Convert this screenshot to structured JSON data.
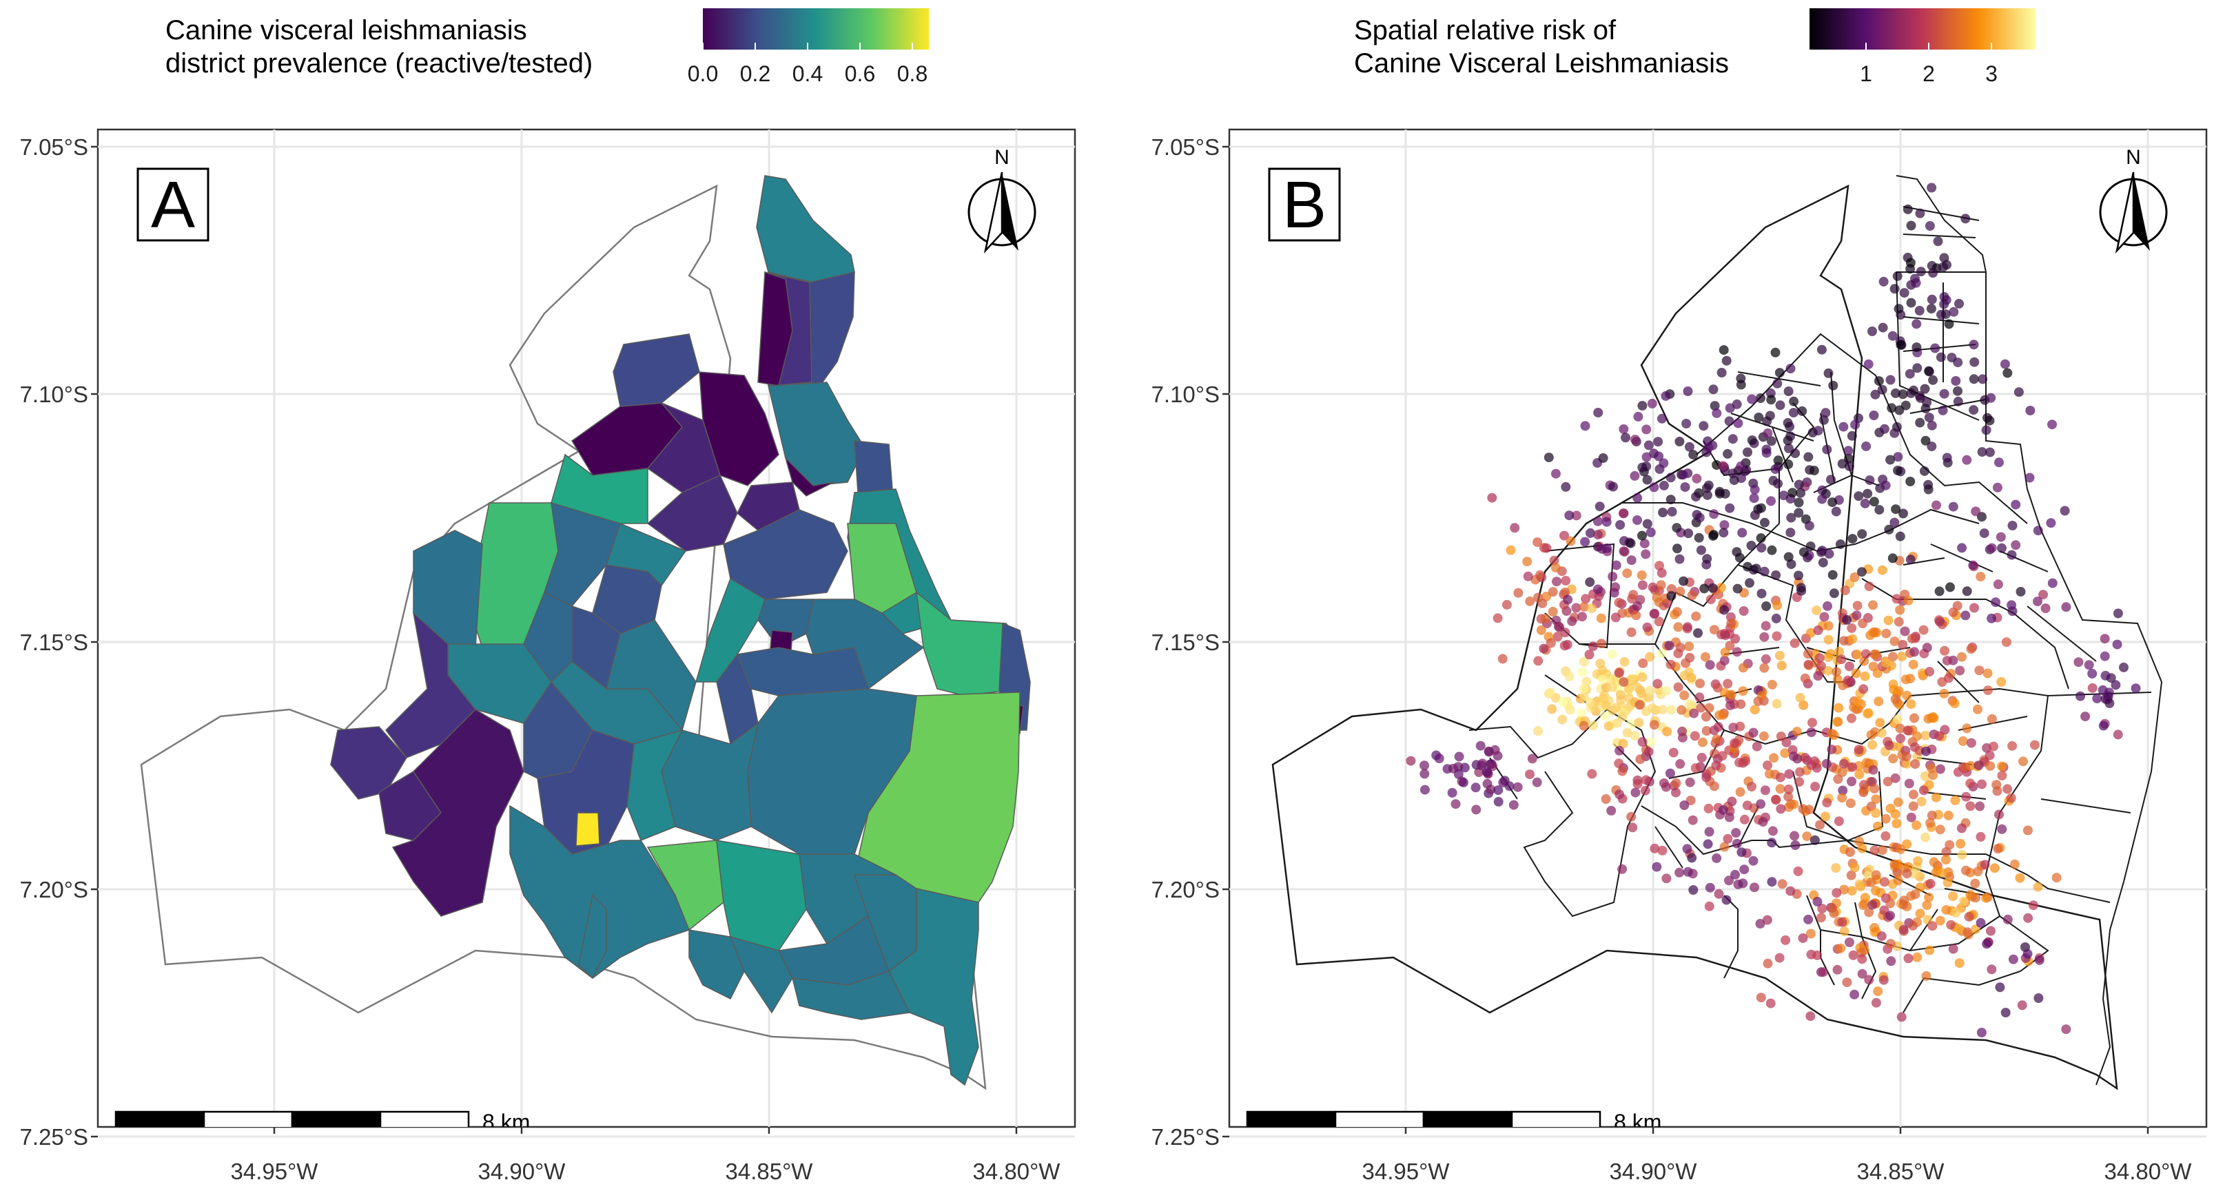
{
  "figure": {
    "panels": [
      {
        "panel_label": "A",
        "legend_title_line1": "Canine visceral leishmaniasis",
        "legend_title_line2": "district prevalence (reactive/tested)",
        "legend_ticks": [
          "0.0",
          "0.2",
          "0.4",
          "0.6",
          "0.8"
        ],
        "colormap": "viridis",
        "scale_label": "8 km",
        "north_label": "N"
      },
      {
        "panel_label": "B",
        "legend_title_line1": "Spatial relative risk of",
        "legend_title_line2": "Canine Visceral Leishmaniasis",
        "legend_ticks": [
          "1",
          "2",
          "3"
        ],
        "colormap": "inferno",
        "scale_label": "8 km",
        "north_label": "N"
      }
    ],
    "y_ticks": [
      "7.05°S",
      "7.10°S",
      "7.15°S",
      "7.20°S",
      "7.25°S"
    ],
    "x_ticks": [
      "34.95°W",
      "34.90°W",
      "34.85°W",
      "34.80°W"
    ]
  },
  "chart_data": {
    "type": "map",
    "panels": [
      {
        "id": "A",
        "kind": "choropleth",
        "variable": "district prevalence (reactive/tested)",
        "value_range": [
          0.0,
          0.85
        ],
        "x_axis": {
          "labels": [
            "34.95°W",
            "34.90°W",
            "34.85°W",
            "34.80°W"
          ],
          "values": [
            -34.95,
            -34.9,
            -34.85,
            -34.8
          ]
        },
        "y_axis": {
          "labels": [
            "7.05°S",
            "7.10°S",
            "7.15°S",
            "7.20°S",
            "7.25°S"
          ],
          "values": [
            -7.05,
            -7.1,
            -7.15,
            -7.2,
            -7.25
          ]
        },
        "notable": "highest prevalence district (yellow, ~0.85) near 34.885°W, 7.19°S"
      },
      {
        "id": "B",
        "kind": "points_with_district_boundaries",
        "variable": "spatial relative risk",
        "value_range": [
          0.4,
          3.7
        ],
        "x_axis": {
          "labels": [
            "34.95°W",
            "34.90°W",
            "34.85°W",
            "34.80°W"
          ],
          "values": [
            -34.95,
            -34.9,
            -34.85,
            -34.8
          ]
        },
        "y_axis": {
          "labels": [
            "7.05°S",
            "7.10°S",
            "7.15°S",
            "7.20°S",
            "7.25°S"
          ],
          "values": [
            -7.05,
            -7.1,
            -7.15,
            -7.2,
            -7.25
          ]
        },
        "hotspots": [
          "west near 34.91°W, 7.155°S (highest)",
          "south-east near 34.84°W, 7.17°S",
          "south near 34.845°W, 7.20°S"
        ]
      }
    ]
  }
}
